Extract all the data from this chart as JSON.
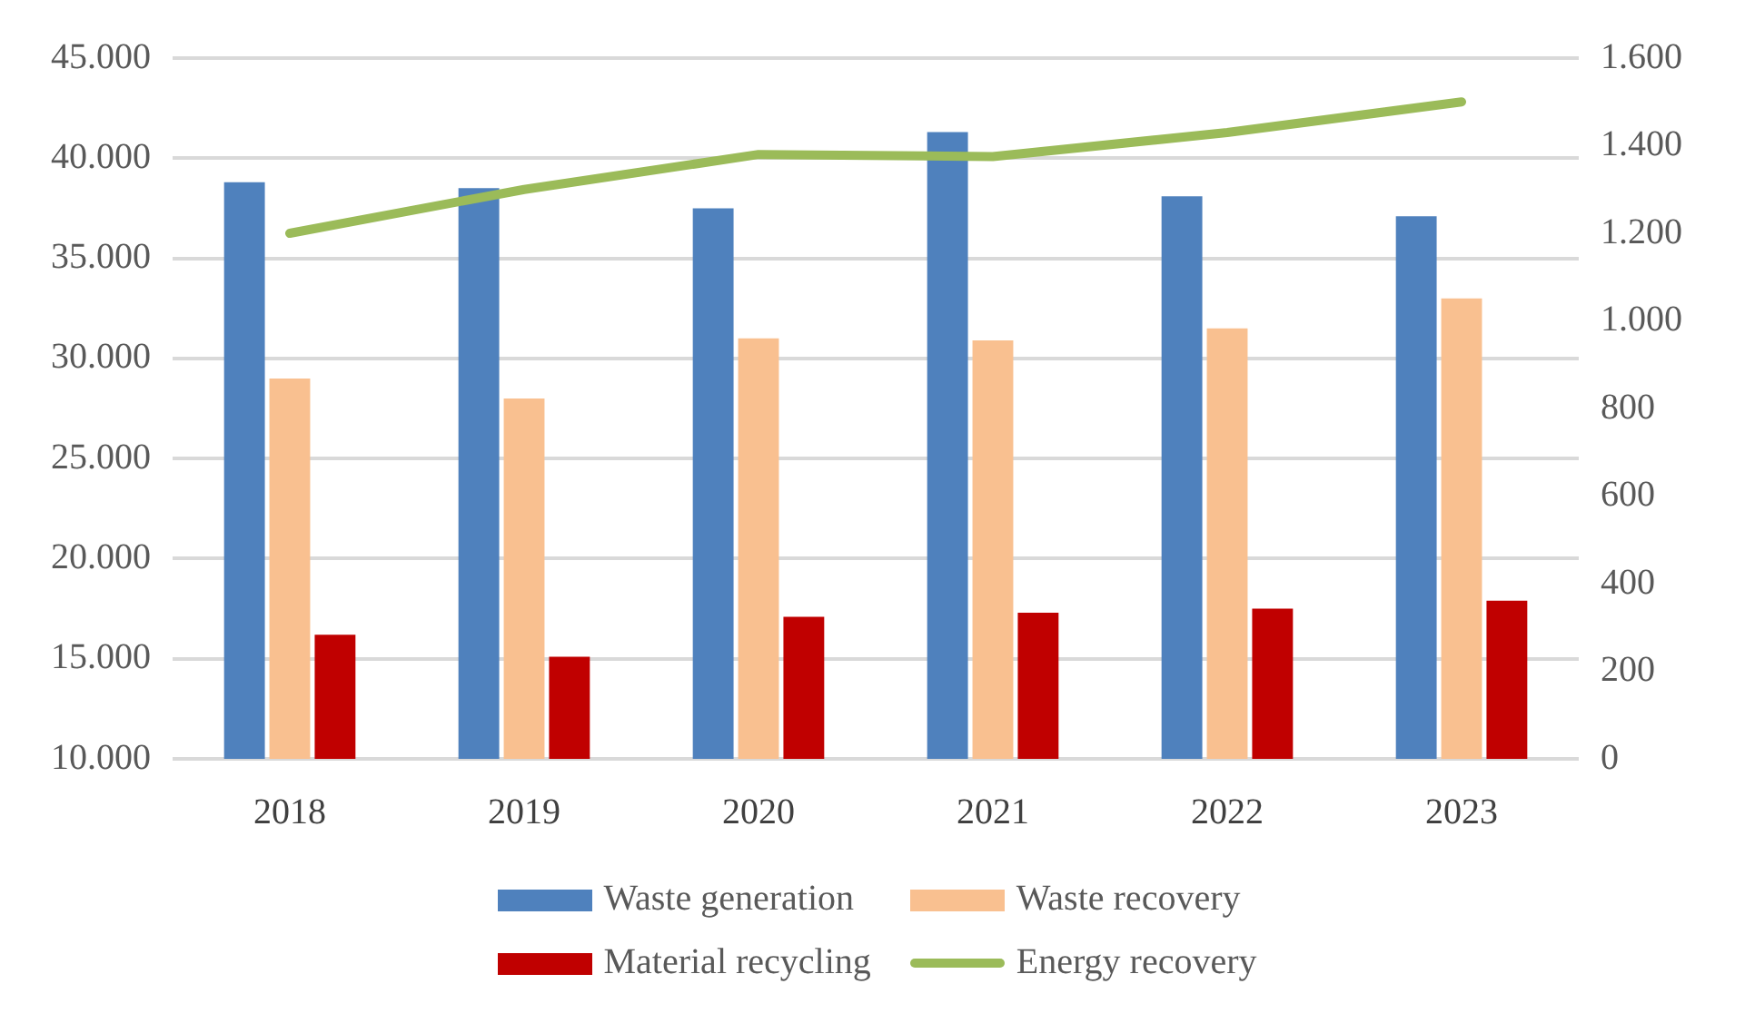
{
  "chart_data": {
    "type": "bar",
    "categories": [
      "2018",
      "2019",
      "2020",
      "2021",
      "2022",
      "2023"
    ],
    "series": [
      {
        "name": "Waste generation",
        "color": "#4f81bd",
        "values": [
          38800,
          38500,
          37500,
          41300,
          38100,
          37100
        ]
      },
      {
        "name": "Waste recovery",
        "color": "#f9c090",
        "values": [
          29000,
          28000,
          31000,
          30900,
          31500,
          33000
        ]
      },
      {
        "name": "Material recycling",
        "color": "#c00000",
        "values": [
          16200,
          15100,
          17100,
          17300,
          17500,
          17900
        ]
      },
      {
        "name": "Energy recovery",
        "type": "line",
        "axis": "y2",
        "color": "#9bbb59",
        "values": [
          1200,
          1300,
          1380,
          1375,
          1430,
          1500
        ]
      }
    ],
    "ylim": [
      10000,
      45000
    ],
    "yticks": [
      {
        "value": 10000,
        "label": "10.000"
      },
      {
        "value": 15000,
        "label": "15.000"
      },
      {
        "value": 20000,
        "label": "20.000"
      },
      {
        "value": 25000,
        "label": "25.000"
      },
      {
        "value": 30000,
        "label": "30.000"
      },
      {
        "value": 35000,
        "label": "35.000"
      },
      {
        "value": 40000,
        "label": "40.000"
      },
      {
        "value": 45000,
        "label": "45.000"
      }
    ],
    "y2lim": [
      0,
      1600
    ],
    "y2ticks": [
      0,
      200,
      400,
      600,
      800,
      {
        "value": 1000,
        "label": "1.000"
      },
      {
        "value": 1200,
        "label": "1.200"
      },
      {
        "value": 1400,
        "label": "1.400"
      },
      {
        "value": 1600,
        "label": "1.600"
      }
    ],
    "grid": "y",
    "legend": "bottom",
    "marker": "none"
  }
}
